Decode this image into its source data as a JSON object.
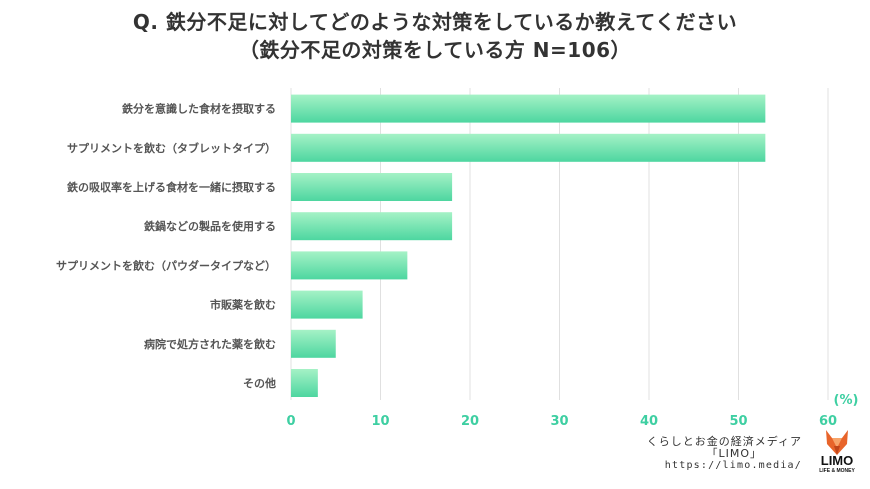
{
  "title": {
    "line1": "Q. 鉄分不足に対してどのような対策をしているか教えてください",
    "line2": "（鉄分不足の対策をしている方 N=106）"
  },
  "chart_data": {
    "type": "bar",
    "orientation": "horizontal",
    "categories": [
      "鉄分を意識した食材を摂取する",
      "サプリメントを飲む（タブレットタイプ）",
      "鉄の吸収率を上げる食材を一緒に摂取する",
      "鉄鍋などの製品を使用する",
      "サプリメントを飲む（パウダータイプなど）",
      "市販薬を飲む",
      "病院で処方された薬を飲む",
      "その他"
    ],
    "values": [
      53,
      53,
      18,
      18,
      13,
      8,
      5,
      3
    ],
    "unit_label": "(%)",
    "xlim": [
      0,
      60
    ],
    "xticks": [
      "0",
      "10",
      "20",
      "30",
      "40",
      "50",
      "60"
    ],
    "grid": true,
    "colors": {
      "bar_top": "#a5f2c6",
      "bar_bottom": "#4dd6a0",
      "tick": "#3ecfa2",
      "label": "#555555",
      "grid": "#e0e0e0"
    }
  },
  "footer": {
    "line1": "くらしとお金の経済メディア",
    "line2": "「LIMO」",
    "url": "https://limo.media/"
  },
  "logo": {
    "wordmark": "LIMO",
    "tagline": "LIFE & MONEY"
  }
}
